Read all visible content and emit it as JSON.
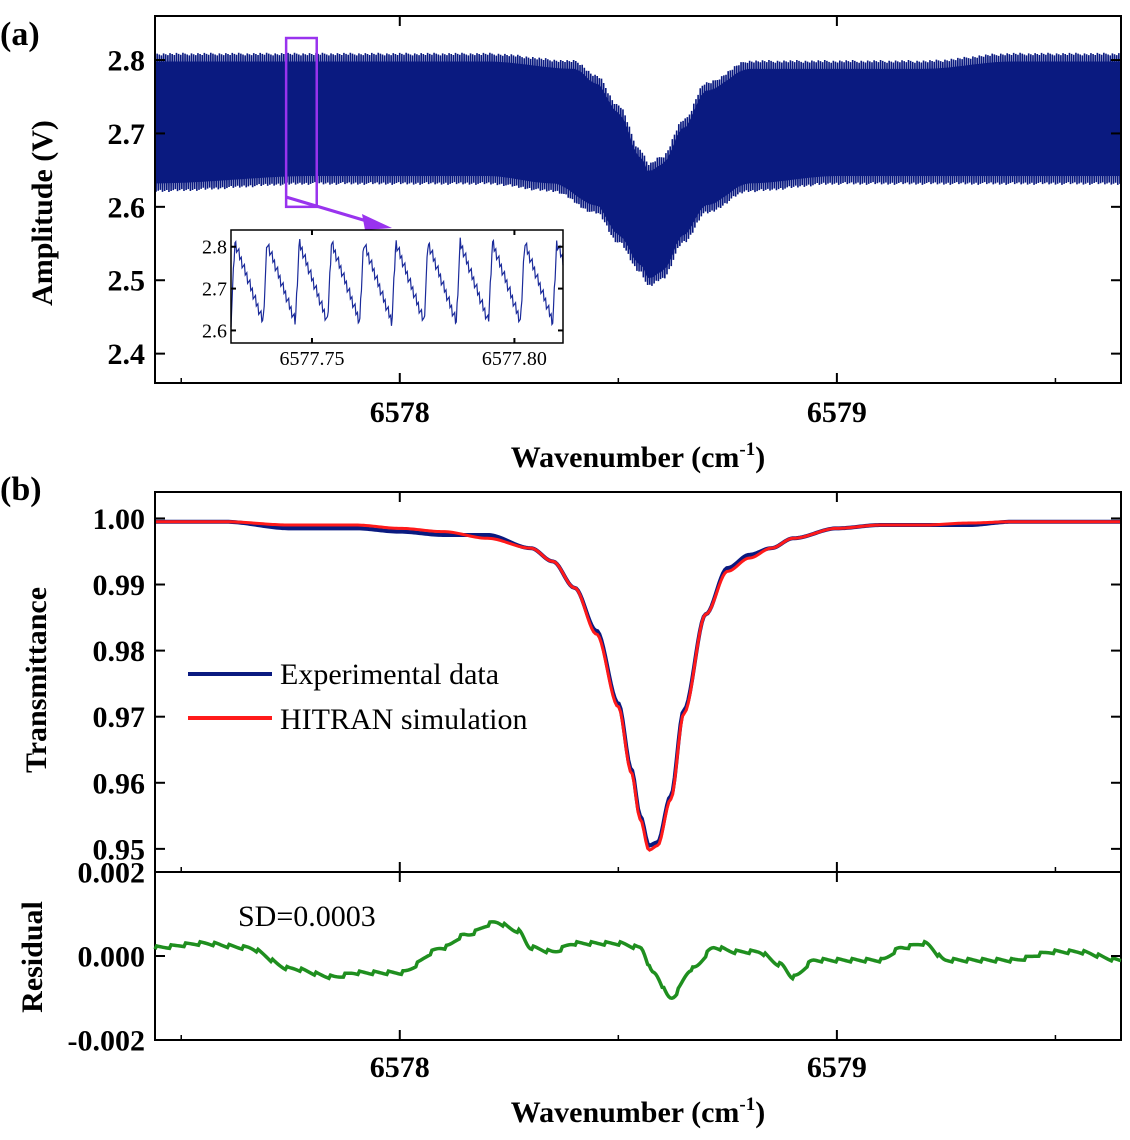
{
  "chart_data": [
    {
      "panel": "(a)",
      "type": "line",
      "title": "",
      "xlabel": "Wavenumber (cm",
      "xlabel_sup": "-1",
      "xlabel_end": ")",
      "ylabel": "Amplitude (V)",
      "xlim": [
        6577.44,
        6579.65
      ],
      "ylim": [
        2.36,
        2.86
      ],
      "xticks": [
        {
          "v": 6578,
          "label": "6578"
        },
        {
          "v": 6579,
          "label": "6579"
        }
      ],
      "yticks": [
        {
          "v": 2.8,
          "label": "2.8"
        },
        {
          "v": 2.7,
          "label": "2.7"
        },
        {
          "v": 2.6,
          "label": "2.6"
        },
        {
          "v": 2.5,
          "label": "2.5"
        },
        {
          "v": 2.4,
          "label": "2.4"
        }
      ],
      "series": [
        {
          "color": "#0a1a80",
          "upper_envelope": {
            "x": [
              6577.44,
              6577.8,
              6578.0,
              6578.2,
              6578.4,
              6578.45,
              6578.5,
              6578.55,
              6578.57,
              6578.6,
              6578.65,
              6578.7,
              6578.8,
              6579.0,
              6579.2,
              6579.4,
              6579.65
            ],
            "y": [
              2.81,
              2.81,
              2.81,
              2.81,
              2.8,
              2.78,
              2.74,
              2.68,
              2.66,
              2.67,
              2.72,
              2.77,
              2.8,
              2.8,
              2.8,
              2.81,
              2.81
            ]
          },
          "lower_envelope": {
            "x": [
              6577.44,
              6577.8,
              6578.0,
              6578.2,
              6578.35,
              6578.45,
              6578.5,
              6578.55,
              6578.57,
              6578.6,
              6578.65,
              6578.7,
              6578.8,
              6579.0,
              6579.2,
              6579.4,
              6579.65
            ],
            "y": [
              2.62,
              2.63,
              2.63,
              2.63,
              2.62,
              2.59,
              2.55,
              2.51,
              2.49,
              2.5,
              2.55,
              2.59,
              2.62,
              2.63,
              2.63,
              2.63,
              2.63
            ]
          }
        }
      ],
      "highlight_box": {
        "x": [
          6577.74,
          6577.81
        ],
        "y": [
          2.6,
          2.83
        ],
        "color": "#9933ee"
      },
      "inset": {
        "xlim": [
          6577.73,
          6577.812
        ],
        "ylim": [
          2.57,
          2.84
        ],
        "xticks": [
          {
            "v": 6577.75,
            "label": "6577.75"
          },
          {
            "v": 6577.8,
            "label": "6577.80"
          }
        ],
        "yticks": [
          {
            "v": 2.8,
            "label": "2.8"
          },
          {
            "v": 2.7,
            "label": "2.7"
          },
          {
            "v": 2.6,
            "label": "2.6"
          }
        ],
        "period": 0.00795,
        "high": 2.81,
        "low": 2.62,
        "color": "#1a2a9a"
      }
    },
    {
      "panel": "(b)",
      "type": "line",
      "title": "",
      "xlabel": "Wavenumber (cm",
      "xlabel_sup": "-1",
      "xlabel_end": ")",
      "ylabel": "Transmittance",
      "xlim": [
        6577.44,
        6579.65
      ],
      "ylim": [
        0.9465,
        1.004
      ],
      "xticks": [
        {
          "v": 6578,
          "label": "6578"
        },
        {
          "v": 6579,
          "label": "6579"
        }
      ],
      "yticks": [
        {
          "v": 1.0,
          "label": "1.00"
        },
        {
          "v": 0.99,
          "label": "0.99"
        },
        {
          "v": 0.98,
          "label": "0.98"
        },
        {
          "v": 0.97,
          "label": "0.97"
        },
        {
          "v": 0.96,
          "label": "0.96"
        },
        {
          "v": 0.95,
          "label": "0.95"
        }
      ],
      "legend": [
        {
          "name": "Experimental data",
          "color": "#0a1a80"
        },
        {
          "name": "HITRAN simulation",
          "color": "#ff1a1a"
        }
      ],
      "series": [
        {
          "name": "Experimental data",
          "color": "#0a1a80",
          "x": [
            6577.44,
            6577.6,
            6577.75,
            6577.9,
            6578.0,
            6578.1,
            6578.2,
            6578.3,
            6578.35,
            6578.4,
            6578.45,
            6578.5,
            6578.53,
            6578.55,
            6578.57,
            6578.59,
            6578.62,
            6578.65,
            6578.7,
            6578.75,
            6578.8,
            6578.85,
            6578.9,
            6579.0,
            6579.1,
            6579.2,
            6579.3,
            6579.4,
            6579.5,
            6579.65
          ],
          "y": [
            0.9995,
            0.9995,
            0.9985,
            0.9985,
            0.998,
            0.9975,
            0.9975,
            0.9955,
            0.9935,
            0.9895,
            0.983,
            0.972,
            0.962,
            0.955,
            0.9505,
            0.951,
            0.958,
            0.971,
            0.9855,
            0.9925,
            0.9945,
            0.9955,
            0.997,
            0.9985,
            0.999,
            0.999,
            0.999,
            0.9995,
            0.9995,
            0.9995
          ]
        },
        {
          "name": "HITRAN simulation",
          "color": "#ff1a1a",
          "x": [
            6577.44,
            6577.6,
            6577.75,
            6577.9,
            6578.0,
            6578.1,
            6578.2,
            6578.3,
            6578.35,
            6578.4,
            6578.45,
            6578.5,
            6578.53,
            6578.55,
            6578.57,
            6578.59,
            6578.62,
            6578.65,
            6578.7,
            6578.75,
            6578.8,
            6578.85,
            6578.9,
            6579.0,
            6579.1,
            6579.2,
            6579.3,
            6579.4,
            6579.5,
            6579.65
          ],
          "y": [
            0.9995,
            0.9995,
            0.999,
            0.999,
            0.9985,
            0.998,
            0.997,
            0.9955,
            0.9935,
            0.9895,
            0.9825,
            0.9715,
            0.9615,
            0.9545,
            0.9498,
            0.9505,
            0.9575,
            0.9705,
            0.9855,
            0.992,
            0.994,
            0.9955,
            0.997,
            0.9985,
            0.999,
            0.999,
            0.9993,
            0.9995,
            0.9995,
            0.9995
          ]
        }
      ]
    },
    {
      "panel": "(b) residual",
      "type": "line",
      "title": "",
      "xlabel": "Wavenumber (cm",
      "xlabel_sup": "-1",
      "xlabel_end": ")",
      "ylabel": "Residual",
      "xlim": [
        6577.44,
        6579.65
      ],
      "ylim": [
        -0.002,
        0.002
      ],
      "xticks": [
        {
          "v": 6578,
          "label": "6578"
        },
        {
          "v": 6579,
          "label": "6579"
        }
      ],
      "yticks": [
        {
          "v": 0.002,
          "label": "0.002"
        },
        {
          "v": 0.0,
          "label": "0.000"
        },
        {
          "v": -0.002,
          "label": "-0.002"
        }
      ],
      "annotation": "SD=0.0003",
      "series": [
        {
          "color": "#1f8f1f",
          "x": [
            6577.44,
            6577.55,
            6577.65,
            6577.75,
            6577.85,
            6577.9,
            6578.0,
            6578.1,
            6578.15,
            6578.22,
            6578.27,
            6578.3,
            6578.35,
            6578.4,
            6578.5,
            6578.55,
            6578.58,
            6578.62,
            6578.67,
            6578.72,
            6578.77,
            6578.82,
            6578.87,
            6578.9,
            6578.95,
            6579.0,
            6579.1,
            6579.15,
            6579.2,
            6579.25,
            6579.4,
            6579.5,
            6579.55,
            6579.65
          ],
          "y": [
            0.0002,
            0.0003,
            0.0002,
            -0.0003,
            -0.0005,
            -0.0004,
            -0.0004,
            0.0002,
            0.0005,
            0.0008,
            0.0006,
            0.0002,
            0.0001,
            0.0003,
            0.0003,
            0.0002,
            -0.0004,
            -0.001,
            -0.0003,
            0.0002,
            0.0001,
            0.0001,
            -0.0002,
            -0.0005,
            -0.0001,
            -0.0001,
            -0.0001,
            0.0002,
            0.0003,
            -0.0001,
            -0.0001,
            0.0001,
            0.0001,
            -0.0001
          ]
        }
      ]
    }
  ]
}
